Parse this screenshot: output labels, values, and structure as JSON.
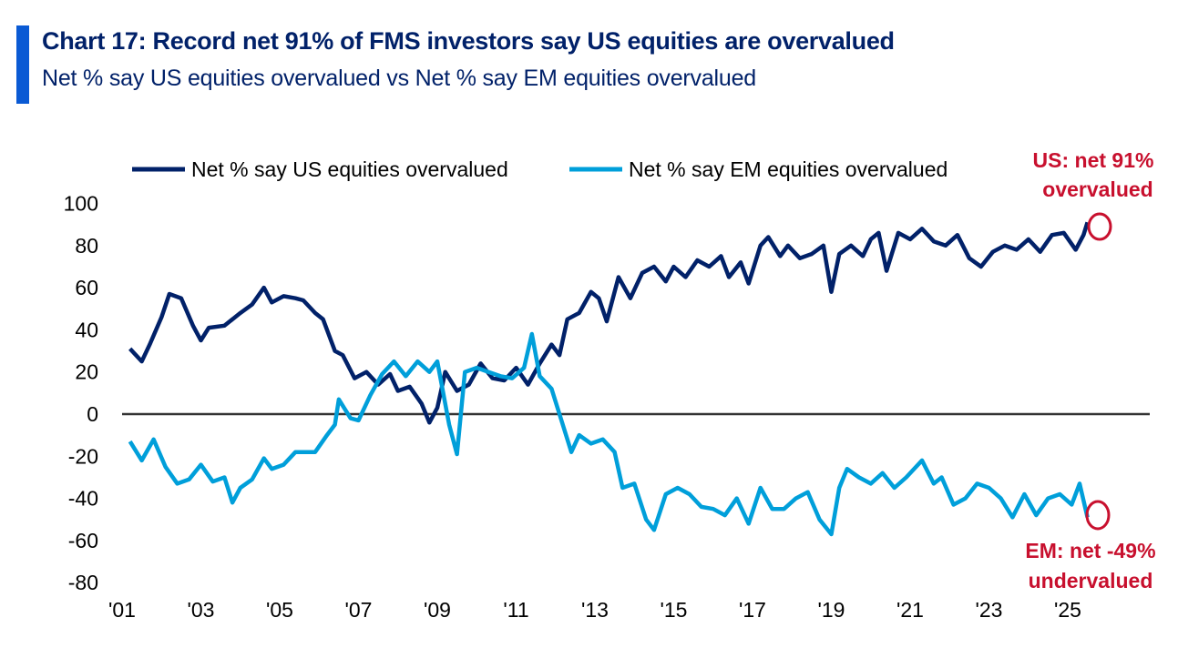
{
  "header": {
    "title": "Chart 17: Record net 91% of FMS investors say US equities are overvalued",
    "subtitle": "Net % say US equities overvalued vs Net % say EM equities overvalued"
  },
  "chart_data": {
    "type": "line",
    "title": "Chart 17: Record net 91% of FMS investors say US equities are overvalued",
    "subtitle": "Net % say US equities overvalued vs Net % say EM equities overvalued",
    "ylim": [
      -80,
      100
    ],
    "yticks": [
      100,
      80,
      60,
      40,
      20,
      0,
      -20,
      -40,
      -60,
      -80
    ],
    "xlim": [
      2001,
      2026.4
    ],
    "xticks": [
      {
        "v": 2001,
        "label": "'01"
      },
      {
        "v": 2003,
        "label": "'03"
      },
      {
        "v": 2005,
        "label": "'05"
      },
      {
        "v": 2007,
        "label": "'07"
      },
      {
        "v": 2009,
        "label": "'09"
      },
      {
        "v": 2011,
        "label": "'11"
      },
      {
        "v": 2013,
        "label": "'13"
      },
      {
        "v": 2015,
        "label": "'15"
      },
      {
        "v": 2017,
        "label": "'17"
      },
      {
        "v": 2019,
        "label": "'19"
      },
      {
        "v": 2021,
        "label": "'21"
      },
      {
        "v": 2023,
        "label": "'23"
      },
      {
        "v": 2025,
        "label": "'25"
      }
    ],
    "legend": "top",
    "grid": false,
    "series": [
      {
        "name": "Net % say US equities overvalued",
        "color": "#012169",
        "x": [
          2001.2,
          2001.5,
          2001.7,
          2002.0,
          2002.2,
          2002.5,
          2002.8,
          2003.0,
          2003.2,
          2003.6,
          2004.0,
          2004.3,
          2004.6,
          2004.8,
          2005.1,
          2005.4,
          2005.6,
          2005.9,
          2006.1,
          2006.4,
          2006.6,
          2006.9,
          2007.2,
          2007.5,
          2007.8,
          2008.0,
          2008.3,
          2008.6,
          2008.8,
          2009.0,
          2009.2,
          2009.5,
          2009.8,
          2010.1,
          2010.4,
          2010.7,
          2011.0,
          2011.3,
          2011.6,
          2011.9,
          2012.1,
          2012.3,
          2012.6,
          2012.9,
          2013.1,
          2013.3,
          2013.6,
          2013.9,
          2014.2,
          2014.5,
          2014.8,
          2015.0,
          2015.3,
          2015.6,
          2015.9,
          2016.2,
          2016.4,
          2016.7,
          2016.9,
          2017.2,
          2017.4,
          2017.7,
          2017.9,
          2018.2,
          2018.5,
          2018.8,
          2019.0,
          2019.2,
          2019.5,
          2019.8,
          2020.0,
          2020.2,
          2020.4,
          2020.7,
          2021.0,
          2021.3,
          2021.6,
          2021.9,
          2022.2,
          2022.5,
          2022.8,
          2023.1,
          2023.4,
          2023.7,
          2024.0,
          2024.3,
          2024.6,
          2024.9,
          2025.2,
          2025.4,
          2025.5
        ],
        "y": [
          31,
          25,
          33,
          46,
          57,
          55,
          42,
          35,
          41,
          42,
          48,
          52,
          60,
          53,
          56,
          55,
          54,
          48,
          45,
          30,
          28,
          17,
          20,
          14,
          19,
          11,
          13,
          5,
          -4,
          3,
          20,
          11,
          14,
          24,
          17,
          16,
          22,
          14,
          24,
          33,
          28,
          45,
          48,
          58,
          55,
          44,
          65,
          55,
          67,
          70,
          63,
          70,
          65,
          73,
          70,
          75,
          65,
          72,
          62,
          80,
          84,
          75,
          80,
          74,
          76,
          80,
          58,
          76,
          80,
          75,
          83,
          86,
          68,
          86,
          83,
          88,
          82,
          80,
          85,
          74,
          70,
          77,
          80,
          78,
          83,
          77,
          85,
          86,
          78,
          85,
          91
        ]
      },
      {
        "name": "Net % say EM equities overvalued",
        "color": "#009fda",
        "x": [
          2001.2,
          2001.5,
          2001.8,
          2002.1,
          2002.4,
          2002.7,
          2003.0,
          2003.3,
          2003.6,
          2003.8,
          2004.0,
          2004.3,
          2004.6,
          2004.8,
          2005.1,
          2005.4,
          2005.6,
          2005.9,
          2006.2,
          2006.4,
          2006.5,
          2006.8,
          2007.0,
          2007.3,
          2007.6,
          2007.9,
          2008.2,
          2008.5,
          2008.8,
          2009.0,
          2009.3,
          2009.5,
          2009.7,
          2010.0,
          2010.3,
          2010.6,
          2010.9,
          2011.2,
          2011.4,
          2011.6,
          2011.9,
          2012.1,
          2012.4,
          2012.6,
          2012.9,
          2013.2,
          2013.5,
          2013.7,
          2014.0,
          2014.3,
          2014.5,
          2014.8,
          2015.1,
          2015.4,
          2015.7,
          2016.0,
          2016.3,
          2016.6,
          2016.9,
          2017.2,
          2017.5,
          2017.8,
          2018.1,
          2018.4,
          2018.7,
          2019.0,
          2019.2,
          2019.4,
          2019.7,
          2020.0,
          2020.3,
          2020.6,
          2020.9,
          2021.3,
          2021.6,
          2021.8,
          2022.1,
          2022.4,
          2022.7,
          2023.0,
          2023.3,
          2023.6,
          2023.9,
          2024.2,
          2024.5,
          2024.8,
          2025.1,
          2025.3,
          2025.5
        ],
        "y": [
          -13,
          -22,
          -12,
          -25,
          -33,
          -31,
          -24,
          -32,
          -30,
          -42,
          -35,
          -31,
          -21,
          -26,
          -24,
          -18,
          -18,
          -18,
          -10,
          -5,
          7,
          -2,
          -3,
          9,
          19,
          25,
          18,
          25,
          20,
          25,
          -5,
          -19,
          20,
          22,
          20,
          18,
          17,
          22,
          38,
          18,
          12,
          0,
          -18,
          -10,
          -14,
          -12,
          -18,
          -35,
          -33,
          -50,
          -55,
          -38,
          -35,
          -38,
          -44,
          -45,
          -48,
          -40,
          -52,
          -35,
          -45,
          -45,
          -40,
          -37,
          -50,
          -57,
          -35,
          -26,
          -30,
          -33,
          -28,
          -35,
          -30,
          -22,
          -33,
          -30,
          -43,
          -40,
          -33,
          -35,
          -40,
          -49,
          -38,
          -48,
          -40,
          -38,
          -43,
          -33,
          -49
        ]
      }
    ],
    "annotations": [
      {
        "text_line1": "US: net 91%",
        "text_line2": "overvalued",
        "color": "#c8102e"
      },
      {
        "text_line1": "EM: net -49%",
        "text_line2": "undervalued",
        "color": "#c8102e"
      }
    ]
  }
}
